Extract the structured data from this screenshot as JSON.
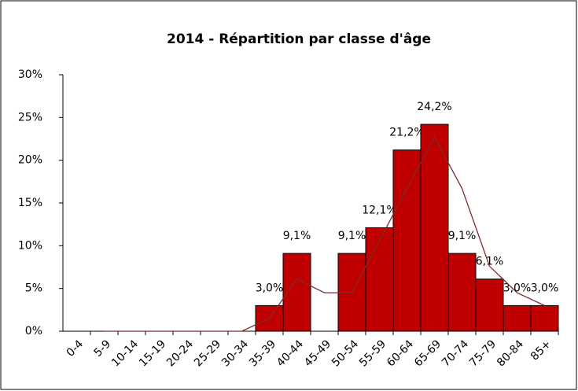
{
  "chart_data": {
    "type": "bar",
    "title": "2014 - Répartition par classe d'âge",
    "categories": [
      "0-4",
      "5-9",
      "10-14",
      "15-19",
      "20-24",
      "25-29",
      "30-34",
      "35-39",
      "40-44",
      "45-49",
      "50-54",
      "55-59",
      "60-64",
      "65-69",
      "70-74",
      "75-79",
      "80-84",
      "85+"
    ],
    "series": [
      {
        "type": "bar",
        "color": "#c00000",
        "values": [
          0,
          0,
          0,
          0,
          0,
          0,
          0,
          3.0,
          9.1,
          0,
          9.1,
          12.1,
          21.2,
          24.2,
          9.1,
          6.1,
          3.0,
          3.0
        ],
        "value_labels": [
          null,
          null,
          null,
          null,
          null,
          null,
          null,
          "3,0%",
          "9,1%",
          null,
          "9,1%",
          "12,1%",
          "21,2%",
          "24,2%",
          "9,1%",
          "6,1%",
          "3,0%",
          "3,0%"
        ]
      },
      {
        "type": "line",
        "color": "#7b2c2c",
        "values": [
          null,
          0,
          0,
          0,
          0,
          0,
          0,
          1.5,
          6.1,
          4.5,
          4.5,
          10.6,
          16.7,
          22.7,
          16.7,
          7.6,
          4.5,
          3.0
        ]
      }
    ],
    "ylim": [
      0,
      30
    ],
    "yticks": [
      {
        "value": 0,
        "label": "0%"
      },
      {
        "value": 5,
        "label": "5%"
      },
      {
        "value": 10,
        "label": "10%"
      },
      {
        "value": 15,
        "label": "15%"
      },
      {
        "value": 20,
        "label": "20%"
      },
      {
        "value": 25,
        "label": "25%"
      },
      {
        "value": 30,
        "label": "30%"
      }
    ]
  }
}
